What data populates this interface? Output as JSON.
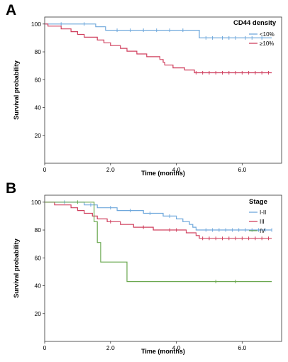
{
  "chart_data": [
    {
      "panel": "A",
      "type": "line",
      "subtype": "kaplan-meier",
      "xlabel": "Time (months)",
      "ylabel": "Survival probability",
      "xlim": [
        0,
        7.2
      ],
      "ylim": [
        0,
        105
      ],
      "x_ticks": [
        0,
        2.0,
        4.0,
        6.0
      ],
      "x_tick_labels": [
        "0",
        "2.0",
        "4.0",
        "6.0"
      ],
      "y_ticks": [
        20,
        40,
        60,
        80,
        100
      ],
      "y_tick_labels": [
        "20",
        "40",
        "60",
        "80",
        "100"
      ],
      "grid": false,
      "legend": {
        "title": "CD44 density",
        "position": "top-right"
      },
      "series": [
        {
          "name": "<10%",
          "color": "#6fa8dc",
          "steps": [
            [
              0,
              100
            ],
            [
              1.55,
              98
            ],
            [
              1.85,
              95.5
            ],
            [
              4.7,
              90
            ],
            [
              6.9,
              90
            ]
          ],
          "censored": [
            0.5,
            1.2,
            2.2,
            2.6,
            3.0,
            3.4,
            3.8,
            4.2,
            4.9,
            5.1,
            5.4,
            5.6,
            5.8,
            6.1,
            6.3,
            6.6
          ]
        },
        {
          "name": "≥10%",
          "color": "#d0405f",
          "steps": [
            [
              0,
              100
            ],
            [
              0.1,
              98.5
            ],
            [
              0.5,
              96.5
            ],
            [
              0.8,
              94.5
            ],
            [
              1.0,
              92.5
            ],
            [
              1.2,
              90.5
            ],
            [
              1.6,
              88.5
            ],
            [
              1.8,
              86.5
            ],
            [
              2.0,
              84.5
            ],
            [
              2.3,
              82.5
            ],
            [
              2.5,
              80.5
            ],
            [
              2.8,
              78.5
            ],
            [
              3.1,
              76.5
            ],
            [
              3.5,
              74.5
            ],
            [
              3.6,
              72.5
            ],
            [
              3.65,
              70.5
            ],
            [
              3.8,
              70.5
            ],
            [
              3.9,
              68.5
            ],
            [
              4.2,
              68.5
            ],
            [
              4.25,
              67
            ],
            [
              4.5,
              67
            ],
            [
              4.55,
              65
            ],
            [
              6.9,
              65
            ]
          ],
          "censored": [
            4.6,
            4.8,
            5.0,
            5.2,
            5.4,
            5.6,
            5.8,
            6.0,
            6.2,
            6.4,
            6.6,
            6.8
          ]
        }
      ]
    },
    {
      "panel": "B",
      "type": "line",
      "subtype": "kaplan-meier",
      "xlabel": "Time (months)",
      "ylabel": "Survival probability",
      "xlim": [
        0,
        7.2
      ],
      "ylim": [
        0,
        105
      ],
      "x_ticks": [
        0,
        2.0,
        4.0,
        6.0
      ],
      "x_tick_labels": [
        "0",
        "2.0",
        "4.0",
        "6.0"
      ],
      "y_ticks": [
        20,
        40,
        60,
        80,
        100
      ],
      "y_tick_labels": [
        "20",
        "40",
        "60",
        "80",
        "100"
      ],
      "grid": false,
      "legend": {
        "title": "Stage",
        "position": "top-right"
      },
      "series": [
        {
          "name": "I-II",
          "color": "#6fa8dc",
          "steps": [
            [
              0,
              100
            ],
            [
              1.2,
              98
            ],
            [
              1.6,
              96
            ],
            [
              2.2,
              94
            ],
            [
              3.0,
              92
            ],
            [
              3.6,
              90
            ],
            [
              4.0,
              88
            ],
            [
              4.2,
              86
            ],
            [
              4.4,
              84
            ],
            [
              4.5,
              82
            ],
            [
              4.6,
              80
            ],
            [
              6.9,
              80
            ]
          ],
          "censored": [
            0.6,
            1.4,
            2.0,
            2.6,
            3.2,
            3.8,
            4.9,
            5.1,
            5.3,
            5.5,
            5.7,
            5.9,
            6.1,
            6.3,
            6.5,
            6.7,
            6.9
          ]
        },
        {
          "name": "III",
          "color": "#d0405f",
          "steps": [
            [
              0,
              100
            ],
            [
              0.3,
              98
            ],
            [
              0.8,
              96
            ],
            [
              1.0,
              94
            ],
            [
              1.2,
              92
            ],
            [
              1.45,
              90
            ],
            [
              1.6,
              88
            ],
            [
              1.9,
              86
            ],
            [
              2.3,
              84
            ],
            [
              2.7,
              82
            ],
            [
              3.3,
              80
            ],
            [
              4.3,
              78
            ],
            [
              4.6,
              76
            ],
            [
              4.7,
              74
            ],
            [
              6.9,
              74
            ]
          ],
          "censored": [
            2.0,
            3.0,
            3.8,
            4.0,
            4.8,
            5.0,
            5.2,
            5.4,
            5.6,
            5.8,
            6.0,
            6.2,
            6.4,
            6.6,
            6.8
          ]
        },
        {
          "name": "IV",
          "color": "#6aa84f",
          "steps": [
            [
              0,
              100
            ],
            [
              1.5,
              86
            ],
            [
              1.6,
              71
            ],
            [
              1.7,
              57
            ],
            [
              2.5,
              43
            ],
            [
              6.9,
              43
            ]
          ],
          "censored": [
            1.0,
            5.2,
            5.8
          ]
        }
      ]
    }
  ]
}
